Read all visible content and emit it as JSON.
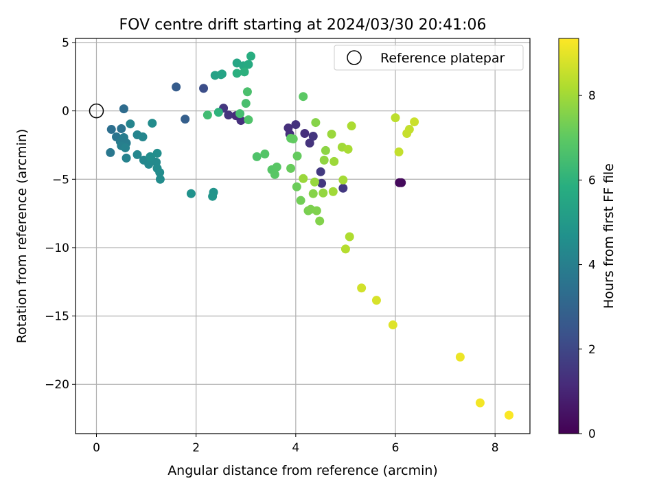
{
  "chart_data": {
    "type": "scatter",
    "title": "FOV centre drift starting at 2024/03/30 20:41:06",
    "xlabel": "Angular distance from reference (arcmin)",
    "ylabel": "Rotation from reference (arcmin)",
    "xlim": [
      -0.42,
      8.7
    ],
    "ylim": [
      -23.6,
      5.3
    ],
    "x_ticks": [
      0,
      2,
      4,
      6,
      8
    ],
    "y_ticks": [
      5,
      0,
      -5,
      -10,
      -15,
      -20
    ],
    "x_tick_labels": [
      "0",
      "2",
      "4",
      "6",
      "8"
    ],
    "y_tick_labels": [
      "5",
      "0",
      "−5",
      "−10",
      "−15",
      "−20"
    ],
    "grid": true,
    "legend": {
      "position": "upper-right",
      "entries": [
        {
          "label": "Reference platepar",
          "marker": "open-circle",
          "x": 0,
          "y": 0
        }
      ]
    },
    "colorbar": {
      "label": "Hours from first FF file",
      "colormap": "viridis",
      "range": [
        0,
        9.35
      ],
      "ticks": [
        0,
        2,
        4,
        6,
        8
      ],
      "tick_labels": [
        "0",
        "2",
        "4",
        "6",
        "8"
      ]
    },
    "series": [
      {
        "marker": "filled-circle",
        "points": [
          {
            "x": 6.08,
            "y": -5.25,
            "h": 0.2
          },
          {
            "x": 6.12,
            "y": -5.25,
            "h": 0.25
          },
          {
            "x": 2.8,
            "y": -0.35,
            "h": 1.2
          },
          {
            "x": 2.9,
            "y": -0.7,
            "h": 1.3
          },
          {
            "x": 2.65,
            "y": -0.3,
            "h": 1.4
          },
          {
            "x": 2.55,
            "y": 0.2,
            "h": 1.5
          },
          {
            "x": 3.85,
            "y": -1.25,
            "h": 1.3
          },
          {
            "x": 3.88,
            "y": -1.7,
            "h": 1.25
          },
          {
            "x": 4.0,
            "y": -1.0,
            "h": 1.35
          },
          {
            "x": 4.18,
            "y": -1.65,
            "h": 1.3
          },
          {
            "x": 4.28,
            "y": -2.35,
            "h": 1.4
          },
          {
            "x": 4.35,
            "y": -1.85,
            "h": 1.45
          },
          {
            "x": 4.5,
            "y": -4.45,
            "h": 1.6
          },
          {
            "x": 4.52,
            "y": -5.3,
            "h": 1.5
          },
          {
            "x": 4.95,
            "y": -5.65,
            "h": 1.55
          },
          {
            "x": 2.15,
            "y": 1.65,
            "h": 2.2
          },
          {
            "x": 1.6,
            "y": 1.75,
            "h": 2.7
          },
          {
            "x": 1.78,
            "y": -0.6,
            "h": 2.8
          },
          {
            "x": 0.55,
            "y": 0.15,
            "h": 3.3
          },
          {
            "x": 0.3,
            "y": -1.35,
            "h": 3.4
          },
          {
            "x": 0.5,
            "y": -1.3,
            "h": 3.5
          },
          {
            "x": 0.4,
            "y": -1.9,
            "h": 3.6
          },
          {
            "x": 0.28,
            "y": -3.05,
            "h": 3.7
          },
          {
            "x": 0.48,
            "y": -2.25,
            "h": 3.8
          },
          {
            "x": 0.55,
            "y": -1.95,
            "h": 3.9
          },
          {
            "x": 0.6,
            "y": -2.35,
            "h": 3.9
          },
          {
            "x": 0.5,
            "y": -2.55,
            "h": 4.0
          },
          {
            "x": 0.58,
            "y": -2.7,
            "h": 4.1
          },
          {
            "x": 0.6,
            "y": -3.45,
            "h": 4.1
          },
          {
            "x": 0.68,
            "y": -0.95,
            "h": 4.2
          },
          {
            "x": 0.82,
            "y": -1.75,
            "h": 4.2
          },
          {
            "x": 0.93,
            "y": -1.9,
            "h": 4.25
          },
          {
            "x": 0.82,
            "y": -3.2,
            "h": 4.3
          },
          {
            "x": 0.95,
            "y": -3.6,
            "h": 4.3
          },
          {
            "x": 1.05,
            "y": -3.9,
            "h": 4.35
          },
          {
            "x": 1.1,
            "y": -3.55,
            "h": 4.4
          },
          {
            "x": 1.2,
            "y": -3.75,
            "h": 4.4
          },
          {
            "x": 1.22,
            "y": -4.2,
            "h": 4.45
          },
          {
            "x": 1.27,
            "y": -4.5,
            "h": 4.5
          },
          {
            "x": 1.28,
            "y": -5.0,
            "h": 4.5
          },
          {
            "x": 1.12,
            "y": -0.9,
            "h": 4.5
          },
          {
            "x": 1.22,
            "y": -3.1,
            "h": 4.55
          },
          {
            "x": 1.08,
            "y": -3.35,
            "h": 4.55
          },
          {
            "x": 1.9,
            "y": -6.05,
            "h": 4.7
          },
          {
            "x": 2.35,
            "y": -5.95,
            "h": 4.8
          },
          {
            "x": 2.33,
            "y": -6.25,
            "h": 4.85
          },
          {
            "x": 2.38,
            "y": 2.6,
            "h": 5.3
          },
          {
            "x": 2.5,
            "y": 2.65,
            "h": 5.35
          },
          {
            "x": 2.52,
            "y": 2.7,
            "h": 5.4
          },
          {
            "x": 2.82,
            "y": 3.5,
            "h": 5.5
          },
          {
            "x": 2.95,
            "y": 3.3,
            "h": 5.6
          },
          {
            "x": 3.05,
            "y": 3.4,
            "h": 5.7
          },
          {
            "x": 3.1,
            "y": 4.0,
            "h": 5.8
          },
          {
            "x": 2.82,
            "y": 2.75,
            "h": 5.9
          },
          {
            "x": 2.97,
            "y": 2.85,
            "h": 5.95
          },
          {
            "x": 2.45,
            "y": -0.1,
            "h": 6.0
          },
          {
            "x": 2.23,
            "y": -0.3,
            "h": 6.4
          },
          {
            "x": 2.88,
            "y": -0.2,
            "h": 6.5
          },
          {
            "x": 3.0,
            "y": 0.55,
            "h": 6.55
          },
          {
            "x": 3.03,
            "y": 1.4,
            "h": 6.6
          },
          {
            "x": 3.05,
            "y": -0.65,
            "h": 6.7
          },
          {
            "x": 3.22,
            "y": -3.35,
            "h": 6.7
          },
          {
            "x": 3.38,
            "y": -3.15,
            "h": 6.8
          },
          {
            "x": 3.52,
            "y": -4.3,
            "h": 6.85
          },
          {
            "x": 3.58,
            "y": -4.65,
            "h": 6.9
          },
          {
            "x": 3.62,
            "y": -4.1,
            "h": 6.9
          },
          {
            "x": 4.15,
            "y": 1.05,
            "h": 6.95
          },
          {
            "x": 3.9,
            "y": -2.0,
            "h": 7.0
          },
          {
            "x": 3.95,
            "y": -2.05,
            "h": 7.05
          },
          {
            "x": 4.03,
            "y": -3.3,
            "h": 7.1
          },
          {
            "x": 3.9,
            "y": -4.2,
            "h": 7.15
          },
          {
            "x": 4.02,
            "y": -5.55,
            "h": 7.2
          },
          {
            "x": 4.1,
            "y": -6.55,
            "h": 7.3
          },
          {
            "x": 4.25,
            "y": -7.3,
            "h": 7.4
          },
          {
            "x": 4.3,
            "y": -7.2,
            "h": 7.45
          },
          {
            "x": 4.42,
            "y": -7.3,
            "h": 7.5
          },
          {
            "x": 4.48,
            "y": -8.05,
            "h": 7.55
          },
          {
            "x": 4.35,
            "y": -6.05,
            "h": 7.6
          },
          {
            "x": 4.4,
            "y": -0.85,
            "h": 7.6
          },
          {
            "x": 4.6,
            "y": -2.9,
            "h": 7.7
          },
          {
            "x": 4.57,
            "y": -3.6,
            "h": 7.75
          },
          {
            "x": 4.55,
            "y": -6.0,
            "h": 7.8
          },
          {
            "x": 4.38,
            "y": -5.2,
            "h": 7.85
          },
          {
            "x": 4.15,
            "y": -4.95,
            "h": 7.9
          },
          {
            "x": 4.72,
            "y": -1.7,
            "h": 7.9
          },
          {
            "x": 4.77,
            "y": -3.7,
            "h": 7.95
          },
          {
            "x": 4.75,
            "y": -5.9,
            "h": 8.0
          },
          {
            "x": 4.93,
            "y": -2.65,
            "h": 8.0
          },
          {
            "x": 4.95,
            "y": -5.05,
            "h": 8.05
          },
          {
            "x": 5.05,
            "y": -2.8,
            "h": 8.1
          },
          {
            "x": 5.12,
            "y": -1.1,
            "h": 8.15
          },
          {
            "x": 5.08,
            "y": -9.2,
            "h": 8.2
          },
          {
            "x": 5.0,
            "y": -10.1,
            "h": 8.3
          },
          {
            "x": 6.0,
            "y": -0.5,
            "h": 8.4
          },
          {
            "x": 6.07,
            "y": -3.0,
            "h": 8.5
          },
          {
            "x": 6.28,
            "y": -1.35,
            "h": 8.5
          },
          {
            "x": 6.23,
            "y": -1.65,
            "h": 8.55
          },
          {
            "x": 6.38,
            "y": -0.8,
            "h": 8.6
          },
          {
            "x": 5.32,
            "y": -12.95,
            "h": 8.7
          },
          {
            "x": 5.62,
            "y": -13.85,
            "h": 8.8
          },
          {
            "x": 5.95,
            "y": -15.65,
            "h": 8.9
          },
          {
            "x": 7.3,
            "y": -18.0,
            "h": 9.1
          },
          {
            "x": 7.7,
            "y": -21.35,
            "h": 9.2
          },
          {
            "x": 8.28,
            "y": -22.25,
            "h": 9.3
          }
        ]
      }
    ]
  }
}
